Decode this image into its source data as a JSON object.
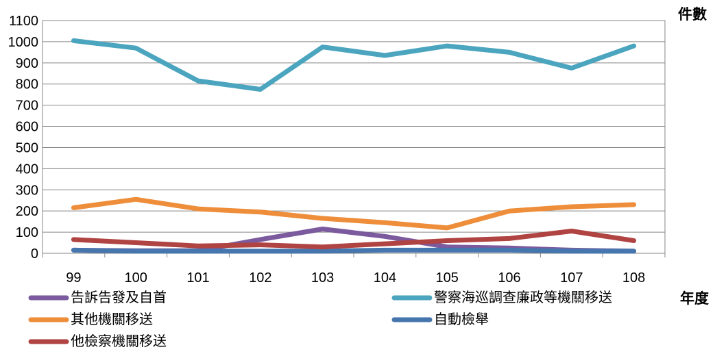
{
  "chart_data": {
    "type": "line",
    "title": "",
    "xlabel": "年度",
    "ylabel": "件數",
    "ylim": [
      0,
      1100
    ],
    "y_ticks": [
      0,
      100,
      200,
      300,
      400,
      500,
      600,
      700,
      800,
      900,
      1000,
      1100
    ],
    "grid": true,
    "legend_position": "bottom",
    "categories": [
      "99",
      "100",
      "101",
      "102",
      "103",
      "104",
      "105",
      "106",
      "107",
      "108"
    ],
    "series": [
      {
        "name": "告訴告發及自首",
        "color": "#7B5A9E",
        "values": [
          15,
          12,
          12,
          65,
          115,
          80,
          30,
          25,
          15,
          10
        ]
      },
      {
        "name": "警察海巡調查廉政等機關移送",
        "color": "#4BA5BF",
        "values": [
          1005,
          970,
          815,
          775,
          975,
          935,
          980,
          950,
          875,
          980
        ]
      },
      {
        "name": "其他機關移送",
        "color": "#EE8D3A",
        "values": [
          215,
          255,
          210,
          195,
          165,
          145,
          120,
          200,
          220,
          230
        ]
      },
      {
        "name": "自動檢舉",
        "color": "#4676AE",
        "values": [
          15,
          10,
          10,
          10,
          10,
          15,
          15,
          15,
          10,
          10
        ]
      },
      {
        "name": "他檢察機關移送",
        "color": "#B04442",
        "values": [
          65,
          50,
          35,
          40,
          30,
          45,
          60,
          70,
          105,
          60
        ]
      }
    ]
  }
}
